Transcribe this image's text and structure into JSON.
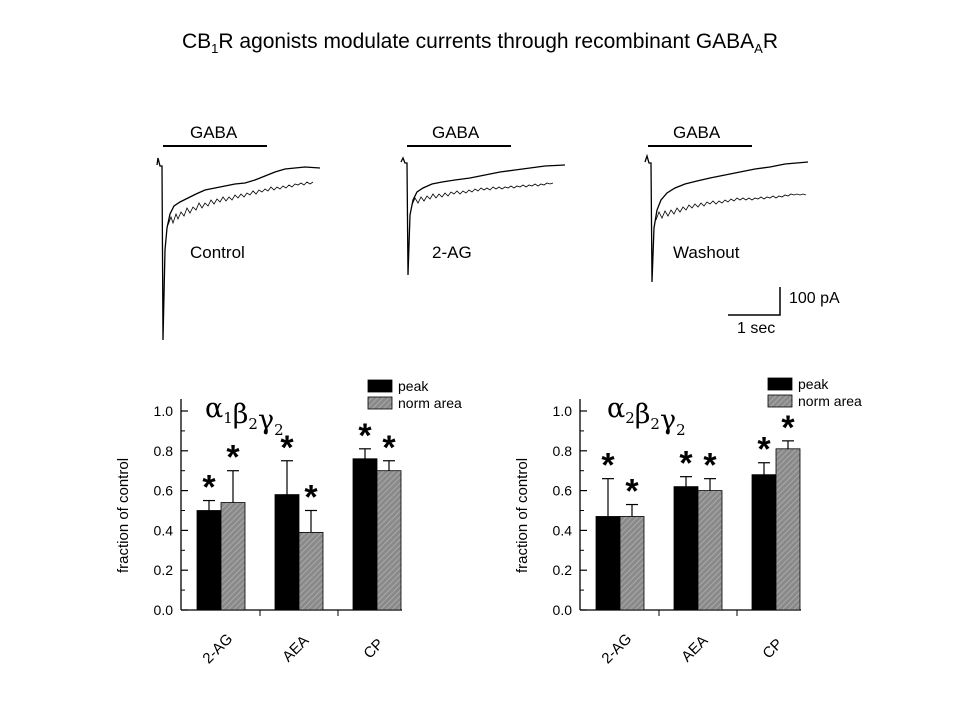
{
  "title": {
    "part1": "CB",
    "sub1": "1",
    "part2": "R agonists modulate currents through recombinant GABA",
    "sub2": "A",
    "part3": "R"
  },
  "traces": {
    "stimulus_label": "GABA",
    "panels": [
      {
        "condition": "Control"
      },
      {
        "condition": "2-AG"
      },
      {
        "condition": "Washout"
      }
    ],
    "scale_bar": {
      "current": "100 pA",
      "time": "1 sec"
    }
  },
  "chart_data": [
    {
      "type": "bar",
      "subunits": {
        "alpha": "α",
        "beta": "β",
        "gamma": "γ",
        "sub_alpha": "1",
        "sub_beta": "2",
        "sub_gamma": "2"
      },
      "ylabel": "fraction of control",
      "ylim": [
        0,
        1.0
      ],
      "yticks": [
        "0.0",
        "0.2",
        "0.4",
        "0.6",
        "0.8",
        "1.0"
      ],
      "categories": [
        "2-AG",
        "AEA",
        "CP"
      ],
      "series": [
        {
          "name": "peak",
          "values": [
            0.5,
            0.58,
            0.76
          ],
          "errors": [
            0.05,
            0.17,
            0.05
          ],
          "significant": [
            true,
            true,
            true
          ],
          "color": "#000000"
        },
        {
          "name": "norm area",
          "values": [
            0.54,
            0.39,
            0.7
          ],
          "errors": [
            0.16,
            0.11,
            0.05
          ],
          "significant": [
            true,
            true,
            true
          ],
          "color": "#8a8a8a"
        }
      ],
      "legend": "top-right"
    },
    {
      "type": "bar",
      "subunits": {
        "alpha": "α",
        "beta": "β",
        "gamma": "γ",
        "sub_alpha": "2",
        "sub_beta": "2",
        "sub_gamma": "2"
      },
      "ylabel": "fraction of control",
      "ylim": [
        0,
        1.0
      ],
      "yticks": [
        "0.0",
        "0.2",
        "0.4",
        "0.6",
        "0.8",
        "1.0"
      ],
      "categories": [
        "2-AG",
        "AEA",
        "CP"
      ],
      "series": [
        {
          "name": "peak",
          "values": [
            0.47,
            0.62,
            0.68
          ],
          "errors": [
            0.19,
            0.05,
            0.06
          ],
          "significant": [
            true,
            true,
            true
          ],
          "color": "#000000"
        },
        {
          "name": "norm area",
          "values": [
            0.47,
            0.6,
            0.81
          ],
          "errors": [
            0.06,
            0.06,
            0.04
          ],
          "significant": [
            true,
            true,
            true
          ],
          "color": "#8a8a8a"
        }
      ],
      "legend": "top-right"
    }
  ]
}
